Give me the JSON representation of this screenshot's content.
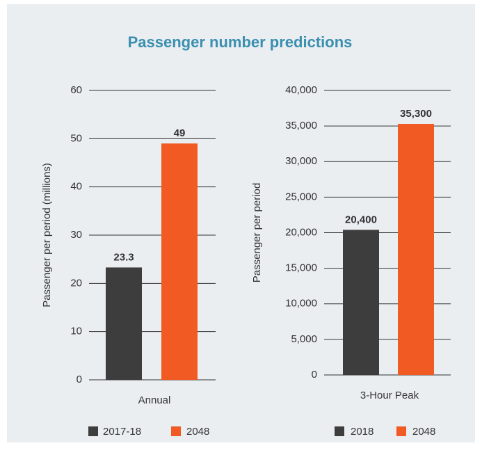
{
  "title": "Passenger number predictions",
  "chart_data": [
    {
      "type": "bar",
      "categories": [
        "Annual"
      ],
      "ylabel": "Passenger per period (millions)",
      "series": [
        {
          "name": "2017-18",
          "color": "#3d3d3d",
          "values": [
            23.3
          ]
        },
        {
          "name": "2048",
          "color": "#f15a22",
          "values": [
            49
          ]
        }
      ],
      "ylim": [
        0,
        60
      ],
      "yticks": [
        0,
        10,
        20,
        30,
        40,
        50,
        60
      ],
      "grid": true
    },
    {
      "type": "bar",
      "categories": [
        "3-Hour Peak"
      ],
      "ylabel": "Passenger per period",
      "series": [
        {
          "name": "2018",
          "color": "#3d3d3d",
          "values": [
            20400
          ],
          "value_labels": [
            "20,400"
          ]
        },
        {
          "name": "2048",
          "color": "#f15a22",
          "values": [
            35300
          ],
          "value_labels": [
            "35,300"
          ]
        }
      ],
      "ylim": [
        0,
        40000
      ],
      "yticks": [
        0,
        {
          "value": 5000,
          "label": "5,000"
        },
        {
          "value": 10000,
          "label": "10,000"
        },
        {
          "value": 15000,
          "label": "15,000"
        },
        {
          "value": 20000,
          "label": "20,000"
        },
        {
          "value": 25000,
          "label": "25,000"
        },
        {
          "value": 30000,
          "label": "30,000"
        },
        {
          "value": 35000,
          "label": "35,000"
        },
        {
          "value": 40000,
          "label": "40,000"
        }
      ],
      "grid": true
    }
  ]
}
